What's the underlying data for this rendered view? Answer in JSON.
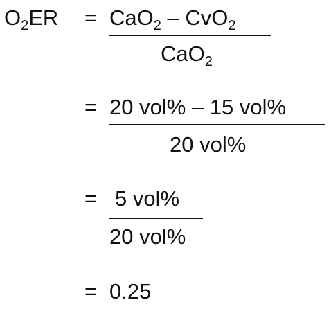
{
  "lhs": {
    "base": "O",
    "sub": "2",
    "rest": "ER"
  },
  "step1": {
    "equals": "=",
    "numerator": {
      "a_base": "CaO",
      "a_sub": "2",
      "minus": "–",
      "b_base": "CvO",
      "b_sub": "2"
    },
    "denominator": {
      "base": "CaO",
      "sub": "2"
    }
  },
  "step2": {
    "equals": "=",
    "numerator": "20 vol% – 15 vol%",
    "denominator": "20 vol%"
  },
  "step3": {
    "equals": "=",
    "numerator": "5 vol%",
    "denominator": "20 vol%"
  },
  "step4": {
    "equals": "=",
    "value": "0.25"
  }
}
